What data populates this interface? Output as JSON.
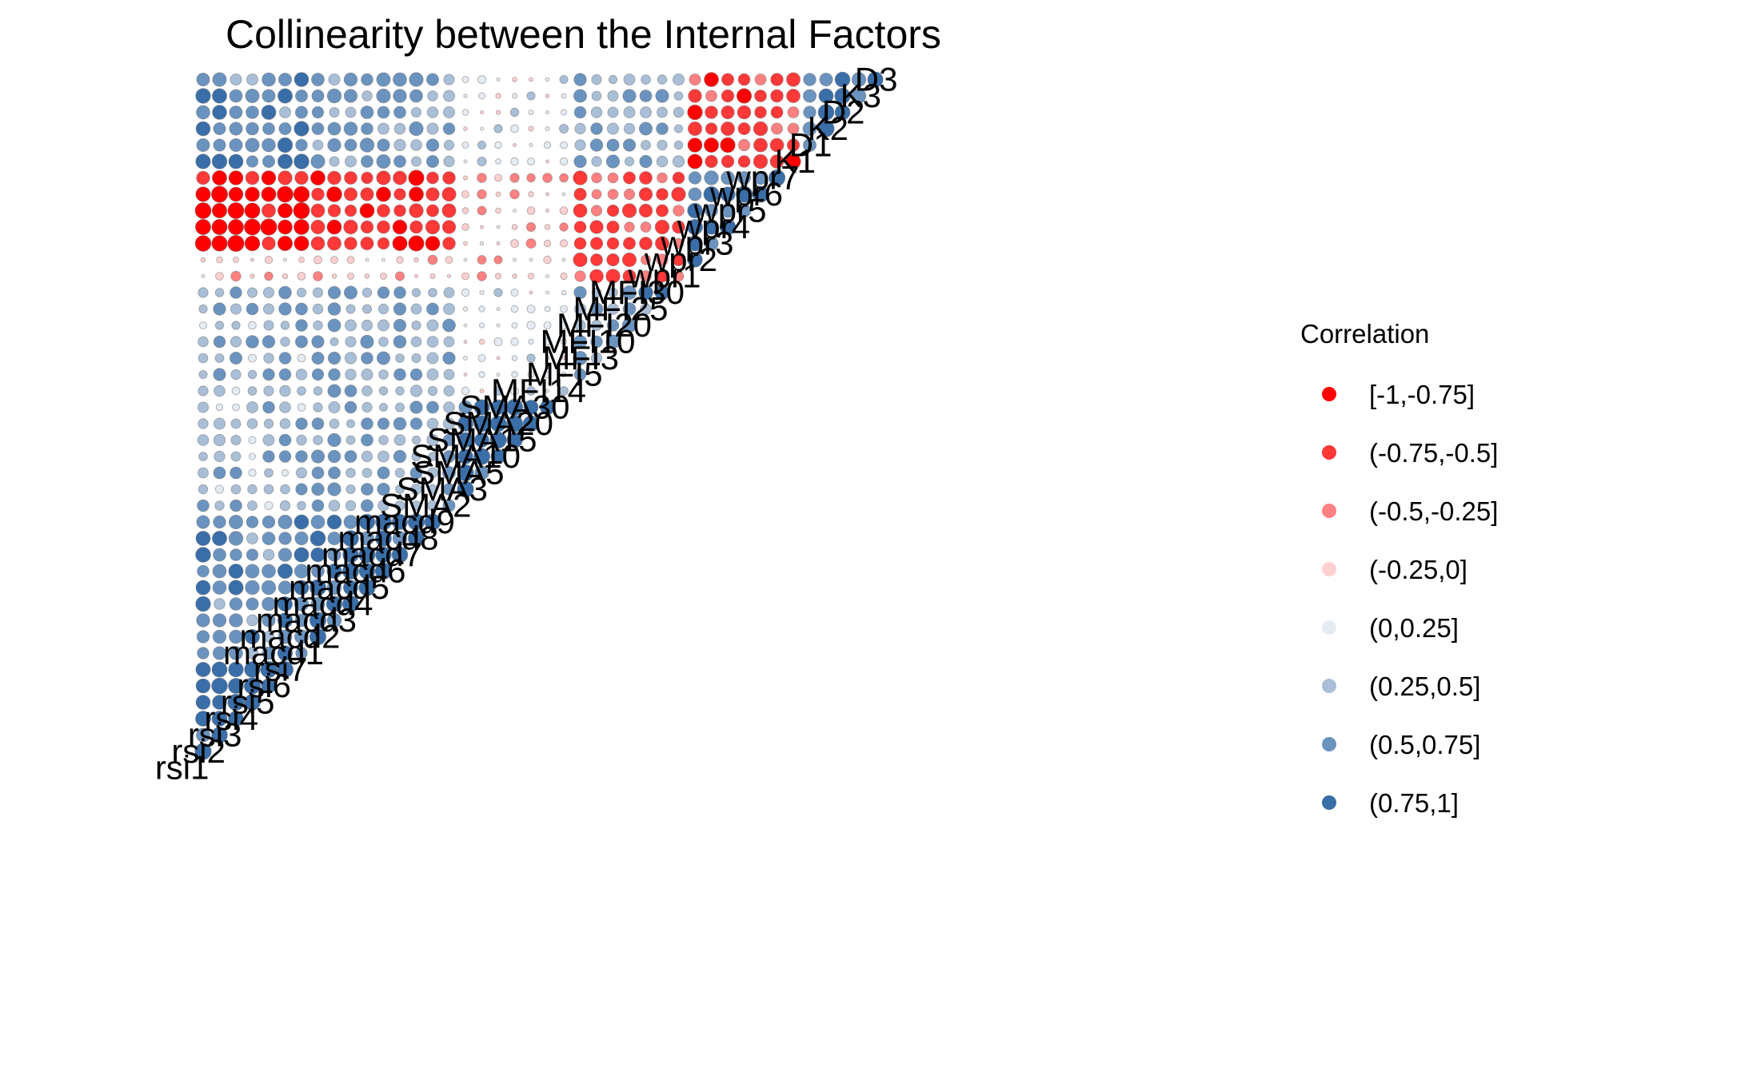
{
  "chart_data": {
    "type": "heatmap",
    "subtype": "correlation-lower-triangle-circles",
    "title": "Collinearity between the Internal Factors",
    "variables": [
      "rsi1",
      "rsi2",
      "rsi3",
      "rsi4",
      "rsi5",
      "rsi6",
      "rsi7",
      "macd1",
      "macd2",
      "macd3",
      "macd4",
      "macd5",
      "macd6",
      "macd7",
      "macd8",
      "macd9",
      "SMA2",
      "SMA3",
      "SMA5",
      "SMA10",
      "SMA15",
      "SMA20",
      "SMA30",
      "MFI14",
      "MFI5",
      "MFI3",
      "MFI10",
      "MFI20",
      "MFI25",
      "MFI30",
      "wpr1",
      "wpr2",
      "wpr3",
      "wpr4",
      "wpr5",
      "wpr6",
      "wpr7",
      "K1",
      "D1",
      "K2",
      "D2",
      "K3",
      "D3"
    ],
    "legend": {
      "title": "Correlation",
      "placement": "right",
      "bins": [
        "[-1,-0.75]",
        "(-0.75,-0.5]",
        "(-0.5,-0.25]",
        "(-0.25,0]",
        "(0,0.25]",
        "(0.25,0.5]",
        "(0.5,0.75]",
        "(0.75,1]"
      ],
      "colors": [
        "#ff0000",
        "#ff3838",
        "#ff8080",
        "#ffd0d0",
        "#e4ebf3",
        "#a9bfd8",
        "#6b93bf",
        "#3a6ea8"
      ]
    },
    "value_domain": [
      -1,
      1
    ],
    "grid": false,
    "axes_visible": false,
    "size_encodes": "absolute correlation",
    "color_encodes": "correlation bin",
    "cell_values_estimated": true
  }
}
